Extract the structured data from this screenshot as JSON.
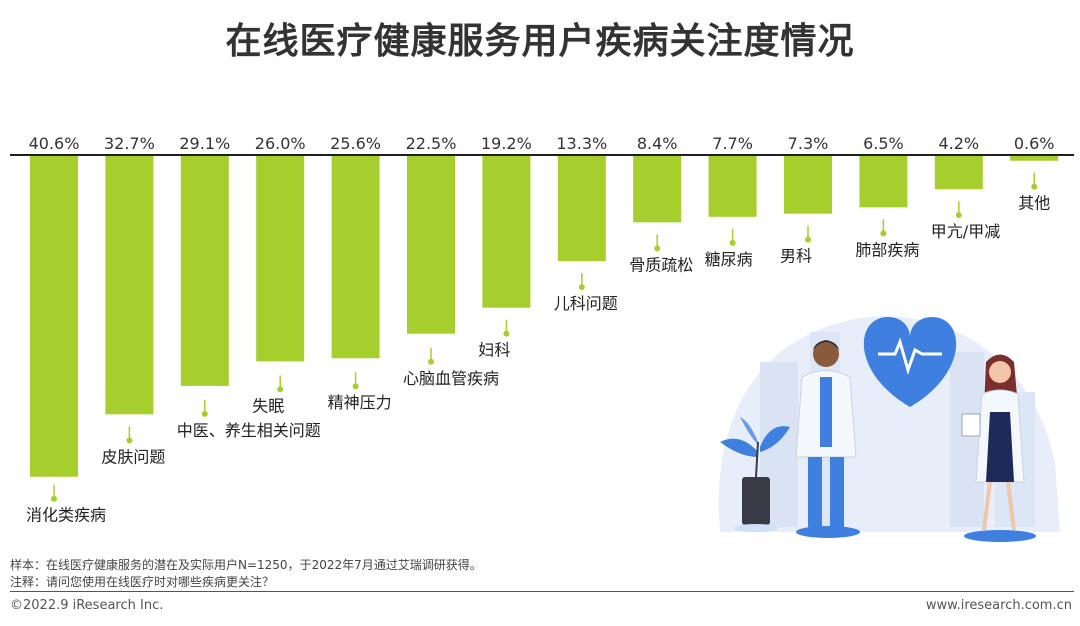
{
  "title": "在线医疗健康服务用户疾病关注度情况",
  "chart_data": {
    "type": "bar",
    "title": "在线医疗健康服务用户疾病关注度情况",
    "categories": [
      "消化类疾病",
      "皮肤问题",
      "中医、养生相关问题",
      "失眠",
      "精神压力",
      "心脑血管疾病",
      "妇科",
      "儿科问题",
      "骨质疏松",
      "糖尿病",
      "男科",
      "肺部疾病",
      "甲亢/甲减",
      "其他"
    ],
    "values": [
      40.6,
      32.7,
      29.1,
      26.0,
      25.6,
      22.5,
      19.2,
      13.3,
      8.4,
      7.7,
      7.3,
      6.5,
      4.2,
      0.6
    ],
    "value_labels": [
      "40.6%",
      "32.7%",
      "29.1%",
      "26.0%",
      "25.6%",
      "22.5%",
      "19.2%",
      "13.3%",
      "8.4%",
      "7.7%",
      "7.3%",
      "6.5%",
      "4.2%",
      "0.6%"
    ],
    "unit": "%",
    "ylim": [
      0,
      45
    ],
    "grid": false,
    "bar_color": "#a6cf2e"
  },
  "notes": {
    "sample": "样本：在线医疗健康服务的潜在及实际用户N=1250，于2022年7月通过艾瑞调研获得。",
    "annotation": "注释：请问您使用在线医疗时对哪些疾病更关注？"
  },
  "footer": {
    "copyright": "©2022.9 iResearch Inc.",
    "website": "www.iresearch.com.cn"
  },
  "colors": {
    "bar": "#a6cf2e",
    "leader": "#a6cf2e",
    "heart": "#3e7fe0",
    "illustration_bg": "#e7eef9"
  },
  "illustration": {
    "icons": [
      "heart-pulse-icon",
      "doctor-male-icon",
      "doctor-female-icon",
      "plant-icon"
    ]
  }
}
